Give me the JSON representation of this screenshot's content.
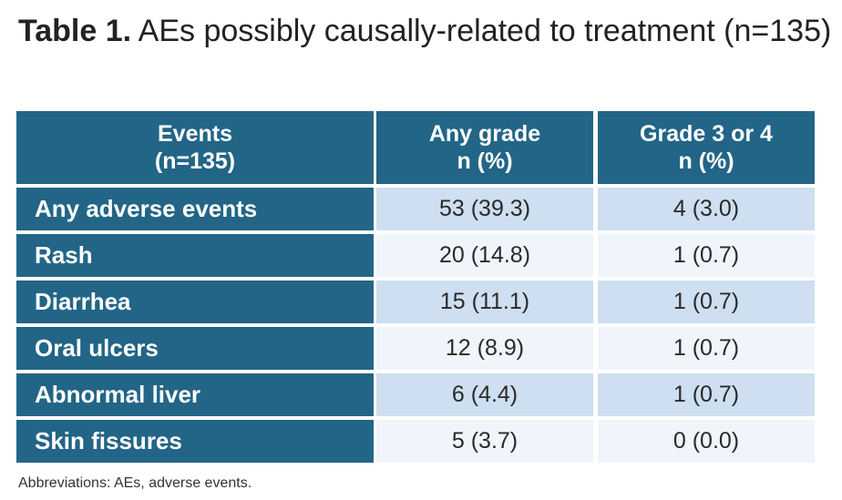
{
  "title": {
    "label": "Table 1.",
    "text": "AEs possibly causally-related to treatment (n=135)"
  },
  "columns": [
    {
      "line1": "Events",
      "line2": "(n=135)"
    },
    {
      "line1": "Any grade",
      "line2": "n (%)"
    },
    {
      "line1": "Grade 3 or 4",
      "line2": "n (%)"
    }
  ],
  "rows": [
    {
      "event": "Any adverse events",
      "any_grade": "53 (39.3)",
      "grade34": "4 (3.0)"
    },
    {
      "event": "Rash",
      "any_grade": "20 (14.8)",
      "grade34": "1 (0.7)"
    },
    {
      "event": "Diarrhea",
      "any_grade": "15 (11.1)",
      "grade34": "1 (0.7)"
    },
    {
      "event": "Oral ulcers",
      "any_grade": "12 (8.9)",
      "grade34": "1 (0.7)"
    },
    {
      "event": "Abnormal liver",
      "any_grade": "6 (4.4)",
      "grade34": "1 (0.7)"
    },
    {
      "event": "Skin fissures",
      "any_grade": "5 (3.7)",
      "grade34": "0 (0.0)"
    }
  ],
  "footnote": "Abbreviations: AEs, adverse events.",
  "colors": {
    "header": "#226586",
    "row_a": "#cddff0",
    "row_b": "#eff5fa"
  }
}
